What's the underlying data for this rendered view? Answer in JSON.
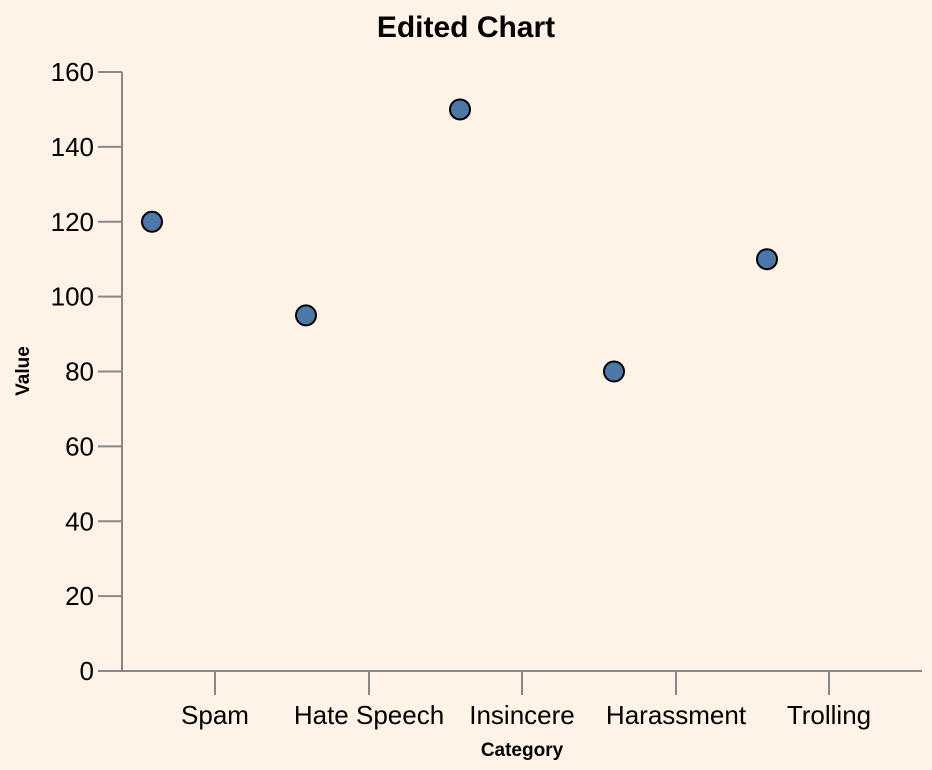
{
  "chart_data": {
    "type": "scatter",
    "title": "Edited Chart",
    "xlabel": "Category",
    "ylabel": "Value",
    "x_tick_labels": [
      "Spam",
      "Hate Speech",
      "Insincere",
      "Harassment",
      "Trolling"
    ],
    "points": [
      {
        "category": "Spam",
        "value": 120
      },
      {
        "category": "Hate Speech",
        "value": 95
      },
      {
        "category": "Insincere",
        "value": 150
      },
      {
        "category": "Harassment",
        "value": 80
      },
      {
        "category": "Trolling",
        "value": 110
      }
    ],
    "ylim": [
      0,
      160
    ],
    "y_ticks": [
      0,
      20,
      40,
      60,
      80,
      100,
      120,
      140,
      160
    ],
    "grid": false,
    "colors": {
      "background": "#fef3e6",
      "point_fill": "#4c78a8",
      "point_stroke": "#000000",
      "axis": "#888888"
    }
  }
}
